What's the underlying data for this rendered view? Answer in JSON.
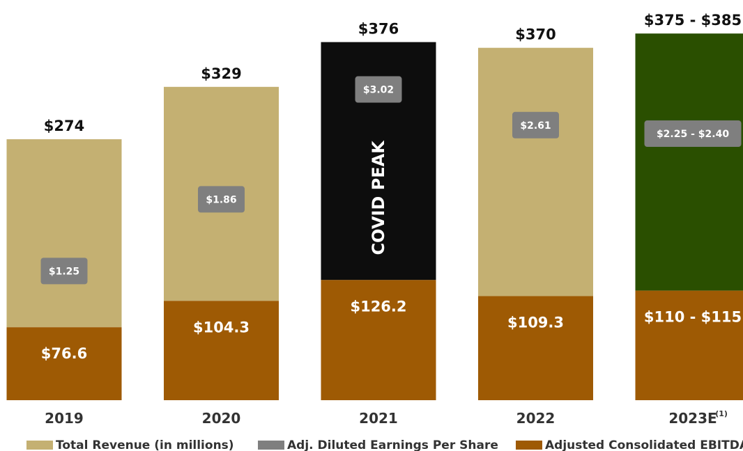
{
  "chart_data": {
    "type": "bar",
    "stacked": true,
    "categories": [
      "2019",
      "2020",
      "2021",
      "2022",
      "2023E"
    ],
    "category_superscripts": [
      "",
      "",
      "",
      "",
      "(1)"
    ],
    "series": [
      {
        "name": "Total Revenue (in millions)",
        "values": [
          274,
          329,
          376,
          370,
          [
            375,
            385
          ]
        ],
        "labels": [
          "$274",
          "$329",
          "$376",
          "$370",
          "$375 - $385"
        ],
        "color": "#c4b072"
      },
      {
        "name": "Adj. Diluted Earnings Per Share",
        "values": [
          1.25,
          1.86,
          3.02,
          2.61,
          [
            2.25,
            2.4
          ]
        ],
        "labels": [
          "$1.25",
          "$1.86",
          "$3.02",
          "$2.61",
          "$2.25 - $2.40"
        ],
        "color": "#7f7f7f"
      },
      {
        "name": "Adjusted Consolidated EBITDA",
        "values": [
          76.6,
          104.3,
          126.2,
          109.3,
          [
            110,
            115
          ]
        ],
        "labels": [
          "$76.6",
          "$104.3",
          "$126.2",
          "$109.3",
          "$110 - $115"
        ],
        "color": "#9e5a04"
      }
    ],
    "bar_top_colors": [
      "#c4b072",
      "#c4b072",
      "#0d0d0d",
      "#c4b072",
      "#2a4f00"
    ],
    "annotations": [
      {
        "category": "2021",
        "text": "COVID PEAK"
      }
    ],
    "ylim": [
      0,
      420
    ],
    "grid": false,
    "legend_position": "bottom"
  }
}
